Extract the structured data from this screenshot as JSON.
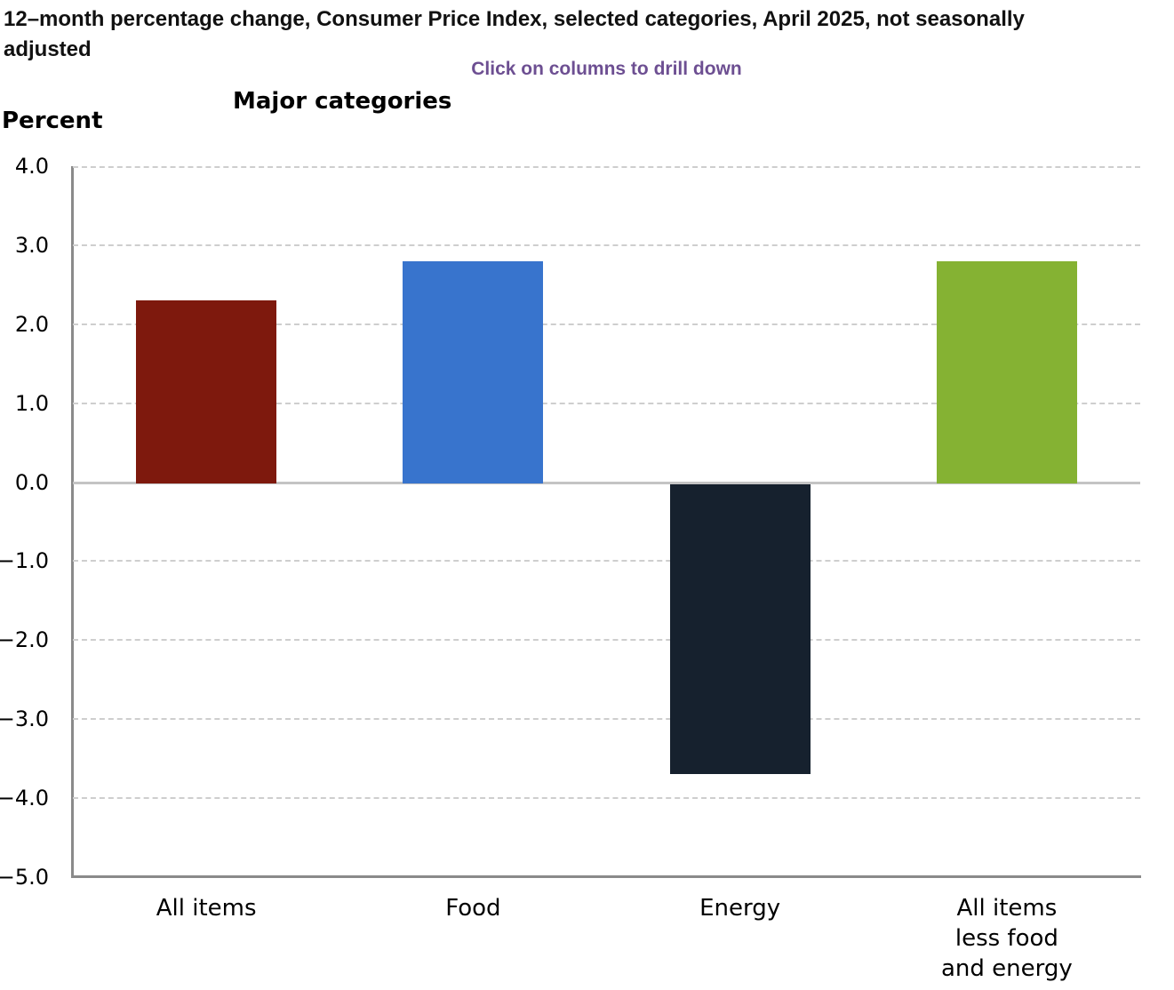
{
  "header": {
    "title": "12–month percentage change, Consumer Price Index, selected categories, April 2025, not seasonally adjusted",
    "subtitle": "Click on columns to drill down",
    "chart_title": "Major categories",
    "y_axis_title": "Percent"
  },
  "colors": {
    "title_text": "#111111",
    "subtitle_text": "#6D4F92",
    "axis_line": "#8a8a8a",
    "gridline": "#cecece",
    "zero_line": "#c4c4c4",
    "bar_all_items": "#7E190D",
    "bar_food": "#3874CD",
    "bar_energy": "#16212E",
    "bar_all_items_less_food_and_energy": "#85B233"
  },
  "chart_data": {
    "type": "bar",
    "title": "Major categories",
    "xlabel": "",
    "ylabel": "Percent",
    "categories": [
      "All items",
      "Food",
      "Energy",
      "All items less food and energy"
    ],
    "category_label_lines": [
      [
        "All items"
      ],
      [
        "Food"
      ],
      [
        "Energy"
      ],
      [
        "All items",
        "less food",
        "and energy"
      ]
    ],
    "values": [
      2.3,
      2.8,
      -3.7,
      2.8
    ],
    "bar_colors": [
      "#7E190D",
      "#3874CD",
      "#16212E",
      "#85B233"
    ],
    "ylim": [
      -5.0,
      4.0
    ],
    "ytick_step": 1.0,
    "yticks": [
      {
        "label": "4.0",
        "value": 4.0
      },
      {
        "label": "3.0",
        "value": 3.0
      },
      {
        "label": "2.0",
        "value": 2.0
      },
      {
        "label": "1.0",
        "value": 1.0
      },
      {
        "label": "0.0",
        "value": 0.0
      },
      {
        "label": "−1.0",
        "value": -1.0
      },
      {
        "label": "−2.0",
        "value": -2.0
      },
      {
        "label": "−3.0",
        "value": -3.0
      },
      {
        "label": "−4.0",
        "value": -4.0
      },
      {
        "label": "−5.0",
        "value": -5.0
      }
    ],
    "grid": "horizontal-dashed",
    "legend": "none"
  }
}
